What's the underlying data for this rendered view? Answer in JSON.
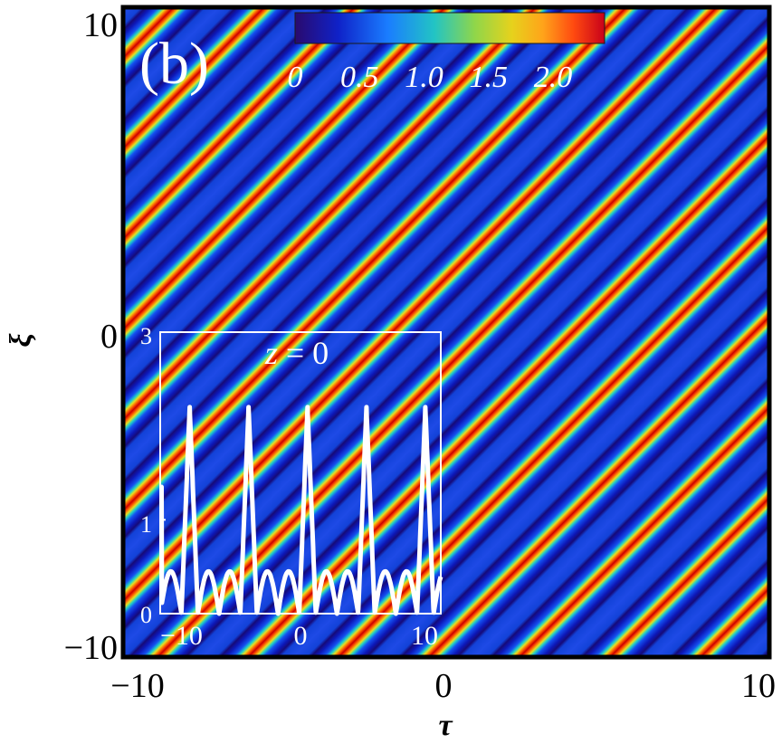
{
  "chart_data": [
    {
      "type": "heatmap",
      "panel_label": "(b)",
      "xlabel": "τ",
      "ylabel": "ξ",
      "xlim": [
        -10,
        10
      ],
      "ylim": [
        -10,
        10
      ],
      "x_ticks": [
        "−10",
        "0",
        "10"
      ],
      "y_ticks": [
        "−10",
        "0",
        "10"
      ],
      "pattern": "periodic diagonal stripes (constant along τ + ξ)",
      "colorbar": {
        "range": [
          0,
          2.4
        ],
        "tick_values": [
          0,
          0.5,
          1.0,
          1.5,
          2.0
        ],
        "tick_labels": [
          "0",
          "0.5",
          "1.0",
          "1.5",
          "2.0"
        ],
        "colormap": [
          "#2a0a6e",
          "#0f22c8",
          "#1a7dff",
          "#22c4c4",
          "#8fd64a",
          "#e6d21c",
          "#ffa41a",
          "#ff4a10",
          "#c8001a"
        ]
      },
      "value_range": [
        0,
        2.2
      ]
    },
    {
      "type": "line",
      "inset": true,
      "annotation": "z = 0",
      "xlim": [
        -10,
        10
      ],
      "ylim": [
        0,
        3
      ],
      "x_ticks": [
        "−10",
        "0",
        "10"
      ],
      "y_ticks": [
        "0",
        "1",
        "3"
      ],
      "peak_x": [
        -7.9,
        -3.7,
        0.5,
        4.7
      ],
      "peak_value": 2.2,
      "side_lobe_value": 0.45,
      "period": 4.2
    }
  ],
  "labels": {
    "panel": "(b)",
    "xlabel": "τ",
    "ylabel": "ξ",
    "x_ticks": [
      "−10",
      "0",
      "10"
    ],
    "y_ticks": [
      "−10",
      "0",
      "10"
    ],
    "cb_ticks": [
      "0",
      "0.5",
      "1.0",
      "1.5",
      "2.0"
    ],
    "inset_annotation_var": "z",
    "inset_annotation_rest": " = 0",
    "inset_x_ticks": [
      "−10",
      "0",
      "10"
    ],
    "inset_y_ticks": [
      "0",
      "1",
      "3"
    ]
  }
}
